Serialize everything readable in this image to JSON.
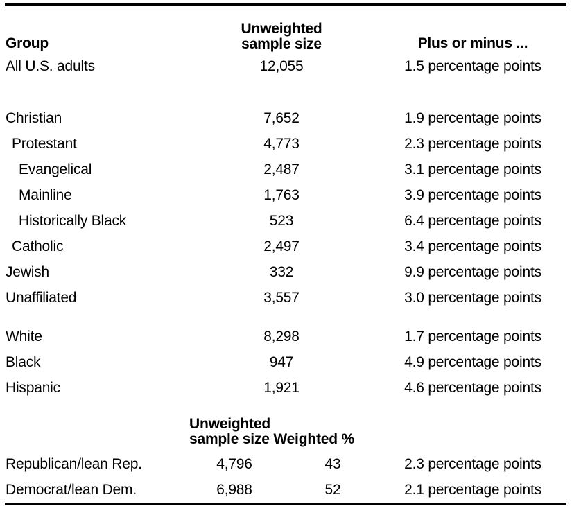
{
  "table": {
    "header": {
      "group_label": "Group",
      "unweighted_line1": "Unweighted",
      "unweighted_line2": "sample size",
      "plus_minus_label": "Plus or minus ..."
    },
    "rows": [
      {
        "group": "All U.S. adults",
        "unweighted_n": "12,055",
        "margin": "1.5 percentage points"
      },
      {
        "group": "Christian",
        "unweighted_n": "7,652",
        "margin": "1.9 percentage points"
      },
      {
        "group": "Protestant",
        "unweighted_n": "4,773",
        "margin": "2.3 percentage points"
      },
      {
        "group": "Evangelical",
        "unweighted_n": "2,487",
        "margin": "3.1 percentage points"
      },
      {
        "group": "Mainline",
        "unweighted_n": "1,763",
        "margin": "3.9 percentage points"
      },
      {
        "group": "Historically Black",
        "unweighted_n": "523",
        "margin": "6.4 percentage points"
      },
      {
        "group": "Catholic",
        "unweighted_n": "2,497",
        "margin": "3.4 percentage points"
      },
      {
        "group": "Jewish",
        "unweighted_n": "332",
        "margin": "9.9 percentage points"
      },
      {
        "group": "Unaffiliated",
        "unweighted_n": "3,557",
        "margin": "3.0 percentage points"
      },
      {
        "group": "White",
        "unweighted_n": "8,298",
        "margin": "1.7 percentage points"
      },
      {
        "group": "Black",
        "unweighted_n": "947",
        "margin": "4.9 percentage points"
      },
      {
        "group": "Hispanic",
        "unweighted_n": "1,921",
        "margin": "4.6 percentage points"
      }
    ],
    "party_header": {
      "line1": "Unweighted",
      "line2": "sample size Weighted %"
    },
    "party_rows": [
      {
        "group": "Republican/lean Rep.",
        "unweighted_n": "4,796",
        "weighted_pct": "43",
        "margin": "2.3 percentage points"
      },
      {
        "group": "Democrat/lean Dem.",
        "unweighted_n": "6,988",
        "weighted_pct": "52",
        "margin": "2.1 percentage points"
      }
    ],
    "colors": {
      "text": "#000000",
      "rule": "#000000",
      "background": "#ffffff"
    }
  }
}
